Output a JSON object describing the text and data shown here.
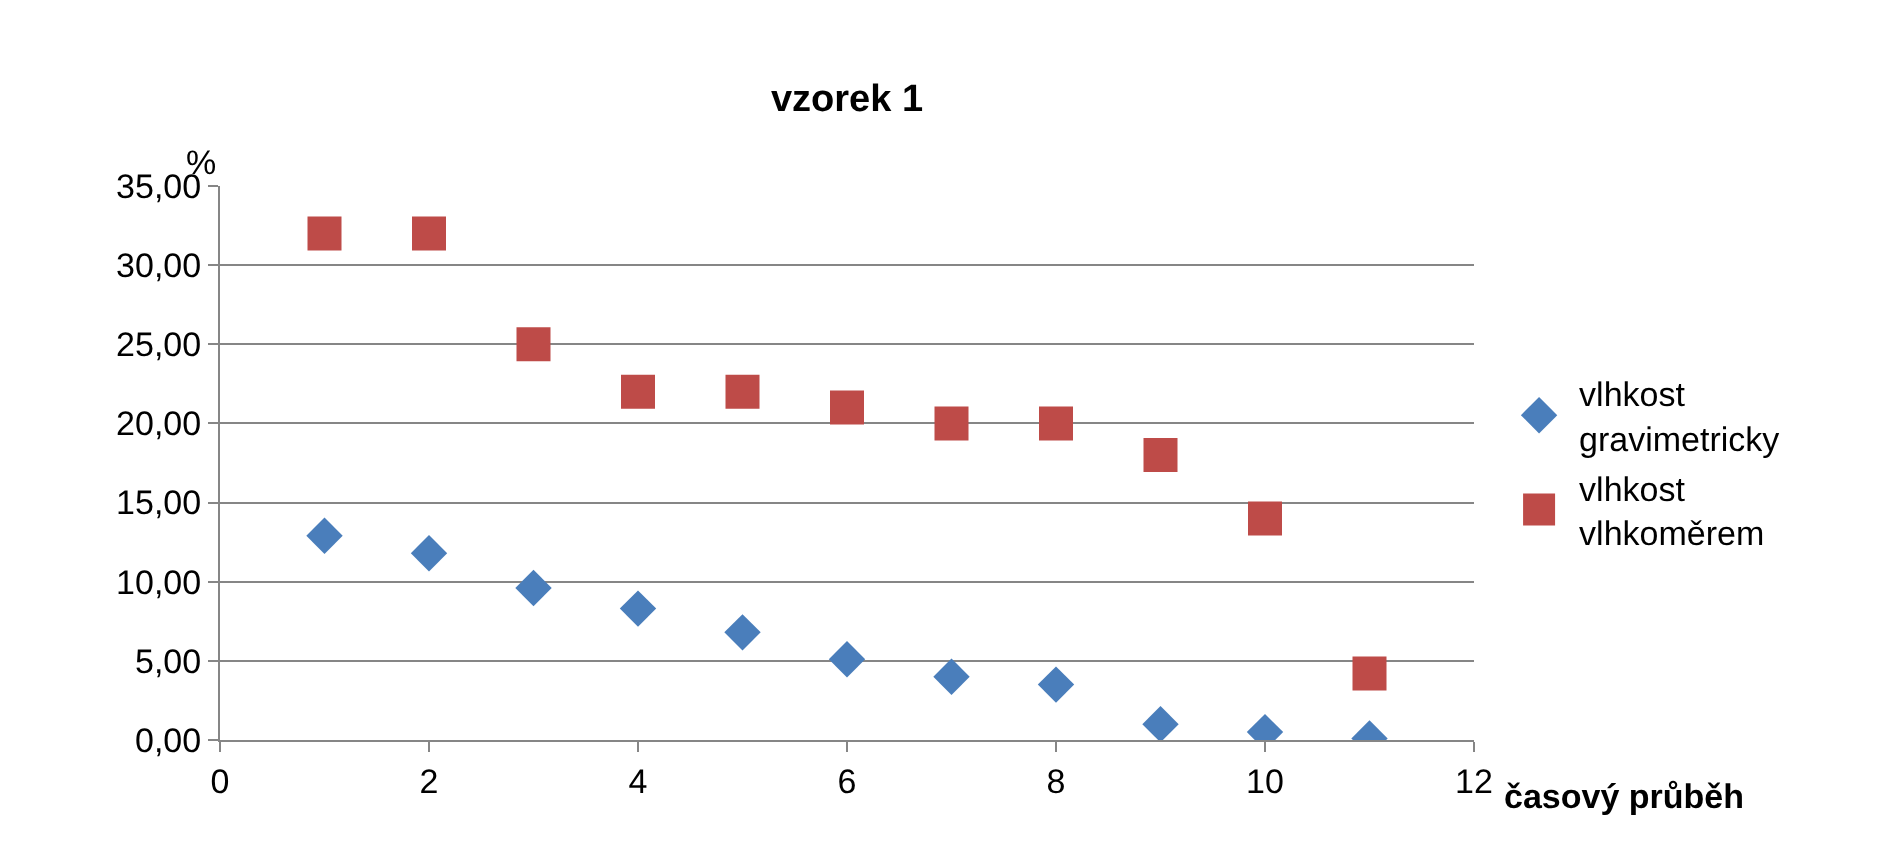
{
  "chart_data": {
    "type": "scatter",
    "title": "vzorek 1",
    "xlabel": "časový průběh",
    "ylabel": "%",
    "x": [
      1,
      2,
      3,
      4,
      5,
      6,
      7,
      8,
      9,
      10,
      11
    ],
    "series": [
      {
        "name": "vlhkost gravimetricky",
        "color": "#4a7ebb",
        "marker": "diamond",
        "values": [
          12.9,
          11.8,
          9.6,
          8.3,
          6.8,
          5.1,
          4.0,
          3.5,
          1.0,
          0.5,
          0.1
        ]
      },
      {
        "name": "vlhkost vlhkoměrem",
        "color": "#be4b48",
        "marker": "square",
        "values": [
          32,
          32,
          25,
          22,
          22,
          21,
          20,
          20,
          18,
          14,
          4.2
        ]
      }
    ],
    "xlim": [
      0,
      12
    ],
    "xticks": [
      0,
      2,
      4,
      6,
      8,
      10,
      12
    ],
    "ylim": [
      0,
      35
    ],
    "yticks": [
      {
        "value": 0,
        "label": "0,00"
      },
      {
        "value": 5,
        "label": "5,00"
      },
      {
        "value": 10,
        "label": "10,00"
      },
      {
        "value": 15,
        "label": "15,00"
      },
      {
        "value": 20,
        "label": "20,00"
      },
      {
        "value": 25,
        "label": "25,00"
      },
      {
        "value": 30,
        "label": "30,00"
      },
      {
        "value": 35,
        "label": "35,00"
      }
    ],
    "grid": "y",
    "legend": "right"
  }
}
